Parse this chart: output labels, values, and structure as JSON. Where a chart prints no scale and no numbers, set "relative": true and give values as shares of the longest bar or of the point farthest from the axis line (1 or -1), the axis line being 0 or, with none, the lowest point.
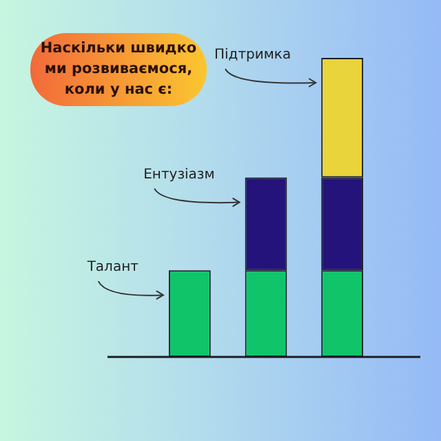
{
  "chart_data": {
    "type": "bar",
    "title": "Наскільки швидко ми розвиваємося, коли у нас є:",
    "categories": [
      null,
      null,
      null
    ],
    "stacked": true,
    "relative": true,
    "legend": false,
    "grid": false,
    "series": [
      {
        "name": "Талант",
        "color": "#10c46a",
        "values": [
          0.29,
          0.29,
          0.29
        ]
      },
      {
        "name": "Ентузіазм",
        "color": "#24137a",
        "values": [
          null,
          0.31,
          0.31
        ]
      },
      {
        "name": "Підтримка",
        "color": "#e9d43c",
        "values": [
          null,
          null,
          0.4
        ]
      }
    ]
  }
}
